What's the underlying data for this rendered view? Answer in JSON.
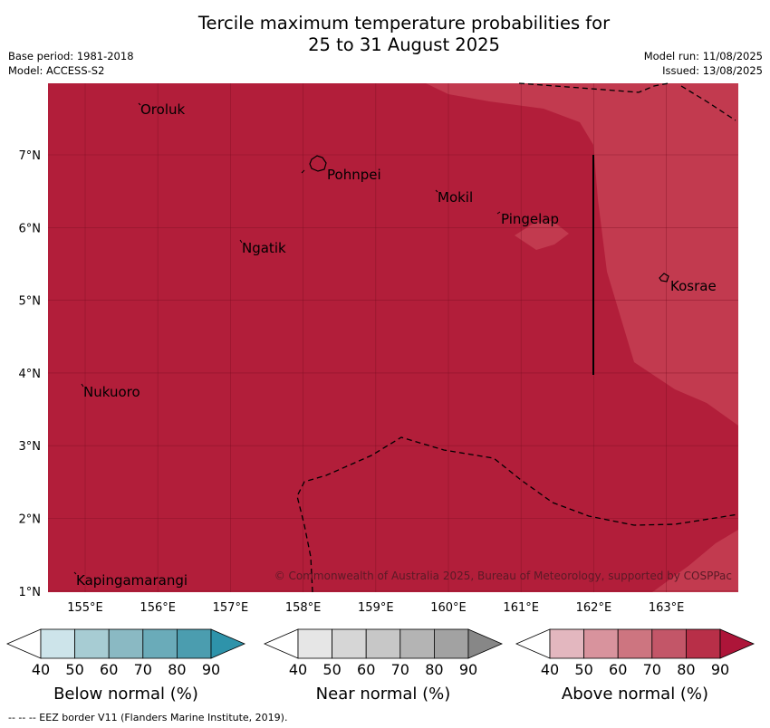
{
  "title_line1": "Tercile maximum temperature probabilities for",
  "title_line2": "25 to 31 August 2025",
  "meta": {
    "base_period": "Base period: 1981-2018",
    "model": "Model: ACCESS-S2",
    "model_run": "Model run: 11/08/2025",
    "issued": "Issued: 13/08/2025"
  },
  "map": {
    "lon_ticks": [
      "155°E",
      "156°E",
      "157°E",
      "158°E",
      "159°E",
      "160°E",
      "161°E",
      "162°E",
      "163°E"
    ],
    "lat_ticks": [
      "7°N",
      "6°N",
      "5°N",
      "4°N",
      "3°N",
      "2°N",
      "1°N"
    ],
    "places": [
      "Oroluk",
      "Pohnpei",
      "Mokil",
      "Pingelap",
      "Ngatik",
      "Kosrae",
      "Nukuoro",
      "Kapingamarangi"
    ],
    "credit": "© Commonwealth of Australia 2025, Bureau of Meteorology, supported by COSPPac",
    "colors": {
      "dominant": "#b21e3a",
      "secondary": "#c23a4f"
    }
  },
  "legend": {
    "tick_labels": [
      "40",
      "50",
      "60",
      "70",
      "80",
      "90"
    ],
    "below": {
      "title": "Below normal (%)",
      "colors": [
        "#cde4ea",
        "#a7ccd3",
        "#8ab9c3",
        "#6aabb9",
        "#4b9daf",
        "#2e93aa"
      ]
    },
    "near": {
      "title": "Near normal (%)",
      "colors": [
        "#e6e6e6",
        "#d6d6d6",
        "#c7c7c7",
        "#b4b4b4",
        "#a2a2a2",
        "#878787"
      ]
    },
    "above": {
      "title": "Above normal (%)",
      "colors": [
        "#e3b7bf",
        "#d8939d",
        "#cd7580",
        "#c35668",
        "#b82f48",
        "#ad1539"
      ]
    }
  },
  "footer": "--  --  -- EEZ border V11 (Flanders Marine Institute, 2019)."
}
